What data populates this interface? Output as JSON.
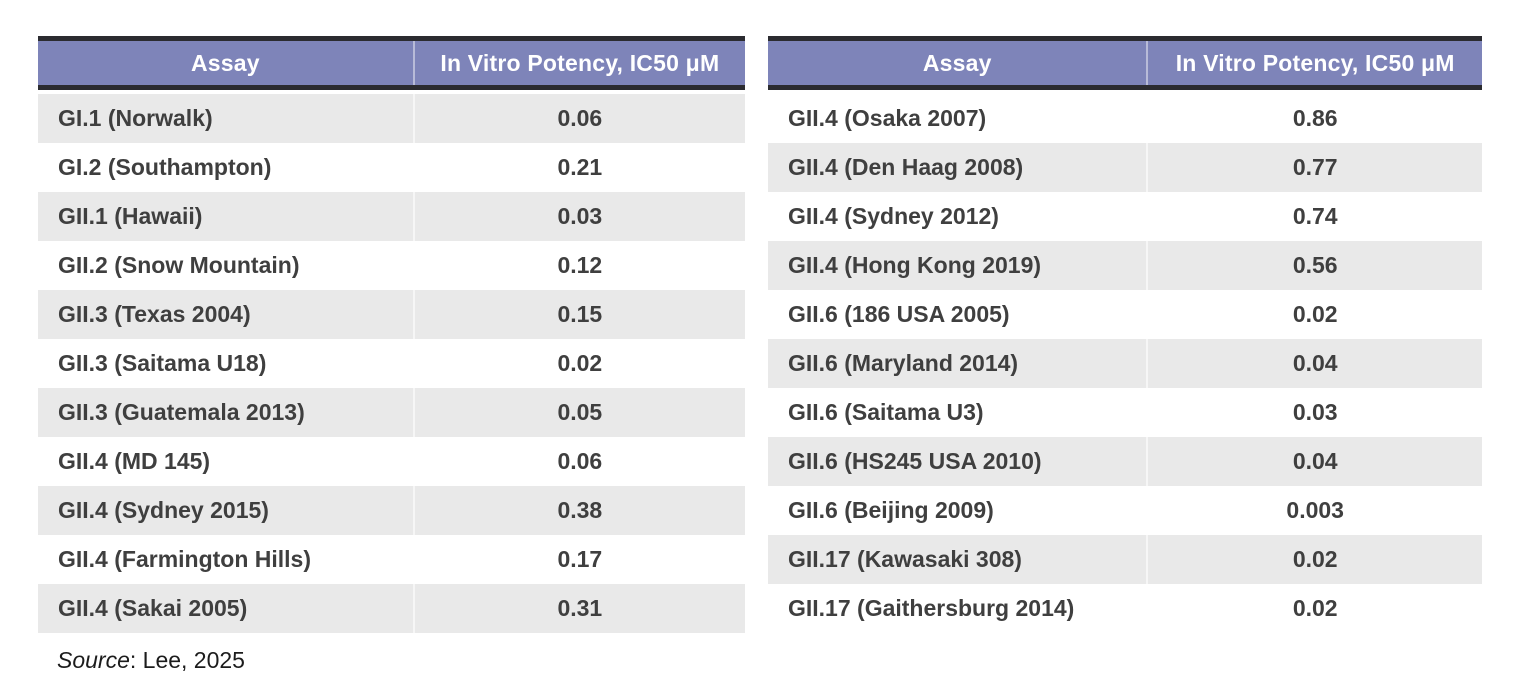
{
  "chart_data": [
    {
      "type": "table",
      "position": "left",
      "columns": [
        "Assay",
        "In Vitro Potency, IC50 μM"
      ],
      "first_row_shaded": true,
      "rows": [
        [
          "GI.1 (Norwalk)",
          "0.06"
        ],
        [
          "GI.2 (Southampton)",
          "0.21"
        ],
        [
          "GII.1 (Hawaii)",
          "0.03"
        ],
        [
          "GII.2 (Snow Mountain)",
          "0.12"
        ],
        [
          "GII.3 (Texas 2004)",
          "0.15"
        ],
        [
          "GII.3 (Saitama U18)",
          "0.02"
        ],
        [
          "GII.3 (Guatemala 2013)",
          "0.05"
        ],
        [
          "GII.4 (MD 145)",
          "0.06"
        ],
        [
          "GII.4 (Sydney 2015)",
          "0.38"
        ],
        [
          "GII.4 (Farmington Hills)",
          "0.17"
        ],
        [
          "GII.4 (Sakai 2005)",
          "0.31"
        ]
      ]
    },
    {
      "type": "table",
      "position": "right",
      "columns": [
        "Assay",
        "In Vitro Potency, IC50 μM"
      ],
      "first_row_shaded": false,
      "rows": [
        [
          "GII.4 (Osaka 2007)",
          "0.86"
        ],
        [
          "GII.4 (Den Haag 2008)",
          "0.77"
        ],
        [
          "GII.4 (Sydney 2012)",
          "0.74"
        ],
        [
          "GII.4 (Hong Kong 2019)",
          "0.56"
        ],
        [
          "GII.6 (186 USA 2005)",
          "0.02"
        ],
        [
          "GII.6 (Maryland 2014)",
          "0.04"
        ],
        [
          "GII.6 (Saitama U3)",
          "0.03"
        ],
        [
          "GII.6 (HS245 USA 2010)",
          "0.04"
        ],
        [
          "GII.6 (Beijing 2009)",
          "0.003"
        ],
        [
          "GII.17 (Kawasaki 308)",
          "0.02"
        ],
        [
          "GII.17 (Gaithersburg 2014)",
          "0.02"
        ]
      ]
    }
  ],
  "source_note": {
    "prefix_italic": "Source",
    "text": ": Lee, 2025"
  },
  "colors": {
    "header_bg": "#7E84B9",
    "header_text": "#FFFFFF",
    "dark_border": "#2B2B30",
    "shaded_row": "#E9E9E9",
    "body_text": "#3F3F3F",
    "source_text": "#1C1C1C"
  }
}
